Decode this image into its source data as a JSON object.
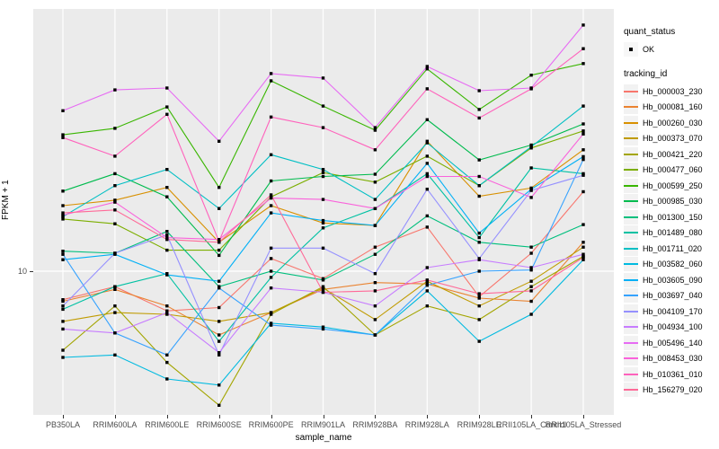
{
  "y_axis": {
    "title": "FPKM + 1",
    "tick_label": "10"
  },
  "x_axis": {
    "title": "sample_name"
  },
  "legend": {
    "quant_title": "quant_status",
    "quant_item": "OK",
    "tracking_title": "tracking_id"
  },
  "chart_data": {
    "type": "line",
    "title": "",
    "xlabel": "sample_name",
    "ylabel": "FPKM + 1",
    "yscale": "log10",
    "ytick_labels": [
      "10"
    ],
    "legend_position": "right",
    "grid": "vertical-per-category-plus-y10",
    "panel_bg": "#EBEBEB",
    "grid_color": "#FFFFFF",
    "marker": {
      "shape": "small-black-square",
      "color": "#000000",
      "meaning": "quant_status OK"
    },
    "x": [
      "PB350LA",
      "RRIM600LA",
      "RRIM600LE",
      "RRIM600SE",
      "RRIM600PE",
      "RRIM901LA",
      "RRIM928BA",
      "RRIM928LA",
      "RRIM928LE",
      "RRII105LA_Control",
      "RRII105LA_Stressed"
    ],
    "series": [
      {
        "name": "Hb_000003_230",
        "color": "#F8766D",
        "values": [
          7.9,
          8.8,
          7.2,
          7.4,
          11.1,
          9.4,
          12.2,
          14.4,
          8.1,
          11.6,
          19.3
        ]
      },
      {
        "name": "Hb_000081_160",
        "color": "#EA8331",
        "values": [
          7.8,
          8.6,
          7.5,
          5.9,
          7.1,
          8.6,
          9.1,
          9.0,
          8.0,
          7.8,
          12.7
        ]
      },
      {
        "name": "Hb_000260_030",
        "color": "#D89000",
        "values": [
          17.2,
          18.0,
          20.0,
          12.7,
          17.2,
          14.9,
          14.6,
          29.3,
          18.6,
          19.9,
          27.3
        ]
      },
      {
        "name": "Hb_000373_070",
        "color": "#C09B00",
        "values": [
          6.6,
          7.1,
          7.0,
          6.6,
          7.1,
          8.7,
          6.7,
          9.2,
          7.5,
          9.2,
          12.2
        ]
      },
      {
        "name": "Hb_000421_220",
        "color": "#A3A500",
        "values": [
          5.2,
          7.5,
          4.7,
          3.3,
          7.0,
          8.8,
          5.9,
          7.5,
          6.7,
          8.8,
          11.3
        ]
      },
      {
        "name": "Hb_000477_060",
        "color": "#7CAE00",
        "values": [
          15.4,
          14.8,
          11.9,
          11.9,
          18.5,
          22.6,
          20.9,
          25.9,
          20.3,
          27.7,
          31.9
        ]
      },
      {
        "name": "Hb_000599_250",
        "color": "#39B600",
        "values": [
          30.9,
          32.6,
          38.9,
          20.0,
          48.3,
          39.2,
          32.1,
          53.3,
          38.1,
          50.6,
          55.7
        ]
      },
      {
        "name": "Hb_000985_030",
        "color": "#00BB4E",
        "values": [
          19.4,
          22.4,
          18.5,
          11.4,
          21.1,
          21.9,
          22.3,
          35.0,
          25.1,
          28.4,
          33.8
        ]
      },
      {
        "name": "Hb_001300_150",
        "color": "#00BF7D",
        "values": [
          11.8,
          11.6,
          13.9,
          8.8,
          10.0,
          9.3,
          11.5,
          15.8,
          12.7,
          12.2,
          14.7
        ]
      },
      {
        "name": "Hb_001489_080",
        "color": "#00C1A3",
        "values": [
          7.3,
          8.8,
          9.8,
          5.6,
          9.5,
          14.3,
          16.8,
          22.4,
          13.2,
          23.5,
          22.4
        ]
      },
      {
        "name": "Hb_001711_020",
        "color": "#00BFC4",
        "values": [
          15.7,
          20.3,
          23.2,
          16.8,
          26.2,
          23.2,
          18.1,
          28.9,
          20.3,
          28.0,
          39.2
        ]
      },
      {
        "name": "Hb_003582_060",
        "color": "#00BAE0",
        "values": [
          4.9,
          5.0,
          4.1,
          3.9,
          6.5,
          6.3,
          5.9,
          8.5,
          5.6,
          7.0,
          11.0
        ]
      },
      {
        "name": "Hb_003605_090",
        "color": "#00B0F6",
        "values": [
          11.0,
          11.5,
          9.7,
          9.2,
          16.2,
          15.2,
          14.6,
          24.4,
          13.7,
          19.7,
          25.8
        ]
      },
      {
        "name": "Hb_003697_040",
        "color": "#35A2FF",
        "values": [
          11.5,
          6.0,
          5.0,
          8.7,
          6.4,
          6.2,
          5.9,
          8.9,
          10.0,
          10.1,
          25.2
        ]
      },
      {
        "name": "Hb_004109_170",
        "color": "#9590FF",
        "values": [
          7.5,
          11.6,
          13.5,
          5.0,
          12.1,
          12.1,
          9.8,
          19.7,
          11.1,
          19.5,
          22.1
        ]
      },
      {
        "name": "Hb_004934_100",
        "color": "#C77CFF",
        "values": [
          6.2,
          6.0,
          7.1,
          5.1,
          8.7,
          8.4,
          7.5,
          10.3,
          11.0,
          10.3,
          11.5
        ]
      },
      {
        "name": "Hb_005496_140",
        "color": "#E76BF3",
        "values": [
          37.7,
          44.8,
          45.5,
          29.3,
          51.3,
          49.4,
          32.8,
          54.4,
          44.5,
          45.5,
          76.6
        ]
      },
      {
        "name": "Hb_008453_030",
        "color": "#FA62DB",
        "values": [
          15.9,
          17.7,
          13.2,
          13.0,
          18.3,
          18.1,
          16.8,
          21.9,
          21.9,
          18.4,
          31.1
        ]
      },
      {
        "name": "Hb_010361_010",
        "color": "#FF62BC",
        "values": [
          30.2,
          25.9,
          36.6,
          12.8,
          35.8,
          32.8,
          27.3,
          45.2,
          35.5,
          45.2,
          63.0
        ]
      },
      {
        "name": "Hb_156279_020",
        "color": "#FF6A98",
        "values": [
          16.2,
          16.6,
          13.0,
          12.7,
          18.8,
          8.4,
          8.5,
          9.3,
          8.3,
          8.5,
          11.2
        ]
      }
    ]
  }
}
